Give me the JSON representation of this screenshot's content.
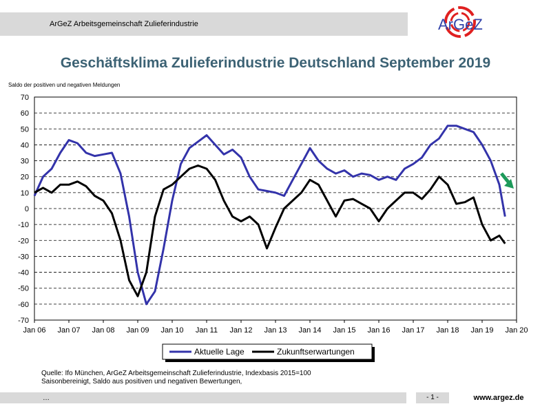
{
  "header": {
    "org_name": "ArGeZ Arbeitsgemeinschaft Zulieferindustrie",
    "logo_text": "ArGeZ"
  },
  "chart_data": {
    "type": "line",
    "title": "Geschäftsklima Zulieferindustrie Deutschland September 2019",
    "ylabel": "Saldo der positiven und negativen Meldungen",
    "ylim": [
      -70,
      70
    ],
    "yticks": [
      -70,
      -60,
      -50,
      -40,
      -30,
      -20,
      -10,
      0,
      10,
      20,
      30,
      40,
      50,
      60,
      70
    ],
    "xlim": [
      "Jan 06",
      "Jan 20"
    ],
    "xticks": [
      "Jan 06",
      "Jan 07",
      "Jan 08",
      "Jan 09",
      "Jan 10",
      "Jan 11",
      "Jan 12",
      "Jan 13",
      "Jan 14",
      "Jan 15",
      "Jan 16",
      "Jan 17",
      "Jan 18",
      "Jan 19",
      "Jan 20"
    ],
    "grid": "horizontal dashed",
    "legend": "bottom-center",
    "x": [
      "2006-01",
      "2006-04",
      "2006-07",
      "2006-10",
      "2007-01",
      "2007-04",
      "2007-07",
      "2007-10",
      "2008-01",
      "2008-04",
      "2008-07",
      "2008-10",
      "2009-01",
      "2009-04",
      "2009-07",
      "2009-10",
      "2010-01",
      "2010-04",
      "2010-07",
      "2010-10",
      "2011-01",
      "2011-04",
      "2011-07",
      "2011-10",
      "2012-01",
      "2012-04",
      "2012-07",
      "2012-10",
      "2013-01",
      "2013-04",
      "2013-07",
      "2013-10",
      "2014-01",
      "2014-04",
      "2014-07",
      "2014-10",
      "2015-01",
      "2015-04",
      "2015-07",
      "2015-10",
      "2016-01",
      "2016-04",
      "2016-07",
      "2016-10",
      "2017-01",
      "2017-04",
      "2017-07",
      "2017-10",
      "2018-01",
      "2018-04",
      "2018-07",
      "2018-10",
      "2019-01",
      "2019-04",
      "2019-07",
      "2019-09"
    ],
    "series": [
      {
        "name": "Aktuelle Lage",
        "color": "#3333aa",
        "values": [
          8,
          20,
          25,
          35,
          43,
          41,
          35,
          33,
          34,
          35,
          22,
          -5,
          -40,
          -60,
          -52,
          -25,
          5,
          28,
          38,
          42,
          46,
          40,
          34,
          37,
          32,
          20,
          12,
          11,
          10,
          8,
          18,
          28,
          38,
          30,
          25,
          22,
          24,
          20,
          22,
          21,
          18,
          20,
          18,
          25,
          28,
          32,
          40,
          44,
          52,
          52,
          50,
          48,
          40,
          30,
          15,
          -5
        ]
      },
      {
        "name": "Zukunftserwartungen",
        "color": "#000000",
        "values": [
          10,
          13,
          10,
          15,
          15,
          17,
          14,
          8,
          5,
          -3,
          -20,
          -45,
          -55,
          -40,
          -5,
          12,
          15,
          20,
          25,
          27,
          25,
          18,
          5,
          -5,
          -8,
          -5,
          -10,
          -25,
          -12,
          0,
          5,
          10,
          18,
          15,
          5,
          -5,
          5,
          6,
          3,
          0,
          -8,
          0,
          5,
          10,
          10,
          6,
          12,
          20,
          15,
          3,
          4,
          7,
          -10,
          -20,
          -17,
          -22
        ]
      }
    ]
  },
  "footer": {
    "source_line1": "Quelle: Ifo München, ArGeZ Arbeitsgemeinschaft Zulieferindustrie, Indexbasis 2015=100",
    "source_line2": "Saisonbereinigt, Saldo aus positiven und negativen Bewertungen,",
    "dots": "…",
    "page": "- 1 -",
    "url": "www.argez.de"
  }
}
